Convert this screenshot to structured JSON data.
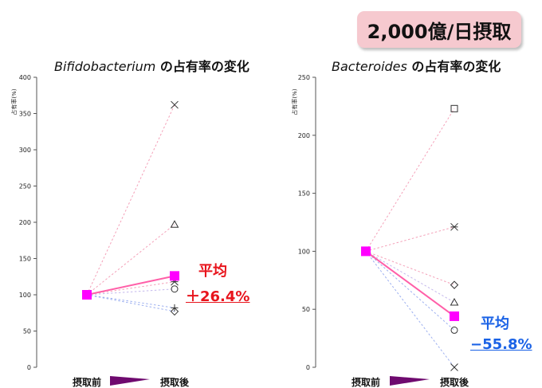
{
  "badge": "2,000億/日摂取",
  "chart_data": [
    {
      "type": "line",
      "title_italic": "Bifidobacterium",
      "title_rest": " の占有率の変化",
      "ylabel": "占有率(%)",
      "ylim": [
        0,
        400
      ],
      "yticks": [
        0,
        50,
        100,
        150,
        200,
        250,
        300,
        350,
        400
      ],
      "categories": [
        "摂取前",
        "摂取後"
      ],
      "series": [
        {
          "marker": "x",
          "values": [
            100,
            362
          ]
        },
        {
          "marker": "triangle",
          "values": [
            100,
            197
          ]
        },
        {
          "marker": "asterisk",
          "values": [
            100,
            118
          ]
        },
        {
          "marker": "circle",
          "values": [
            100,
            108
          ]
        },
        {
          "marker": "plus",
          "values": [
            100,
            82
          ]
        },
        {
          "marker": "diamond",
          "values": [
            100,
            77
          ]
        }
      ],
      "average": {
        "values": [
          100,
          126
        ],
        "label": "平均",
        "value_label": "＋26.4%",
        "color": "#e8141c"
      }
    },
    {
      "type": "line",
      "title_italic": "Bacteroides",
      "title_rest": " の占有率の変化",
      "ylabel": "占有率(%)",
      "ylim": [
        0,
        250
      ],
      "yticks": [
        0,
        50,
        100,
        150,
        200,
        250
      ],
      "categories": [
        "摂取前",
        "摂取後"
      ],
      "series": [
        {
          "marker": "square",
          "values": [
            100,
            223
          ]
        },
        {
          "marker": "asterisk",
          "values": [
            100,
            121
          ]
        },
        {
          "marker": "diamond",
          "values": [
            100,
            71
          ]
        },
        {
          "marker": "triangle",
          "values": [
            100,
            56
          ]
        },
        {
          "marker": "circle",
          "values": [
            100,
            32
          ]
        },
        {
          "marker": "x",
          "values": [
            100,
            0
          ]
        }
      ],
      "average": {
        "values": [
          100,
          44
        ],
        "label": "平均",
        "value_label": "−55.8%",
        "color": "#1a62e6"
      }
    }
  ],
  "colors": {
    "avg_line": "#ff5fa8",
    "avg_marker": "#ff00ff",
    "arrow": "#6f0a6f"
  }
}
